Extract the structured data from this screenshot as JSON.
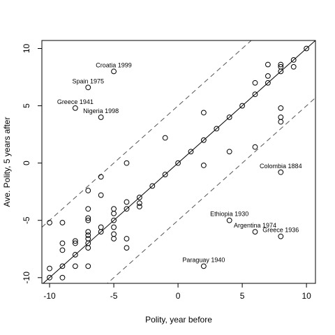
{
  "chart_data": {
    "type": "scatter",
    "title": "",
    "xlabel": "Polity, year before",
    "ylabel": "Ave. Polity, 5 years after",
    "xlim": [
      -10.6,
      10.7
    ],
    "ylim": [
      -10.5,
      10.7
    ],
    "xticks": [
      -10,
      -5,
      0,
      5,
      10
    ],
    "yticks": [
      -10,
      -5,
      0,
      5,
      10
    ],
    "grid": false,
    "legend": "none",
    "colors": {
      "points": "#000000",
      "lines": "#000000",
      "lines_dashed": "#555555",
      "background": "#ffffff"
    },
    "reference_lines": [
      {
        "slope": 1,
        "intercept": 0,
        "style": "solid"
      },
      {
        "slope": 1,
        "intercept": 5,
        "style": "dashed"
      },
      {
        "slope": 1,
        "intercept": -5,
        "style": "dashed"
      }
    ],
    "points": [
      [
        -10,
        -10
      ],
      [
        -10,
        -9.2
      ],
      [
        -10,
        -5.2
      ],
      [
        -9,
        -10
      ],
      [
        -9,
        -9
      ],
      [
        -9,
        -7.6
      ],
      [
        -9,
        -7
      ],
      [
        -9,
        -5.2
      ],
      [
        -8,
        -9
      ],
      [
        -8,
        -8
      ],
      [
        -8,
        -7
      ],
      [
        -8,
        -6.8
      ],
      [
        -7,
        -9
      ],
      [
        -7,
        -7.4
      ],
      [
        -7,
        -7
      ],
      [
        -7,
        -6.6
      ],
      [
        -7,
        -6.3
      ],
      [
        -7,
        -6
      ],
      [
        -7,
        -5
      ],
      [
        -7,
        -4.8
      ],
      [
        -7,
        -4
      ],
      [
        -7,
        -2.4
      ],
      [
        -7,
        6.6
      ],
      [
        -6,
        -6
      ],
      [
        -6,
        -5.6
      ],
      [
        -6,
        -2.8
      ],
      [
        -6,
        -1.2
      ],
      [
        -6,
        4
      ],
      [
        -5,
        -6.6
      ],
      [
        -5,
        -6.2
      ],
      [
        -5,
        -5.6
      ],
      [
        -5,
        -5
      ],
      [
        -5,
        -4.4
      ],
      [
        -5,
        -4
      ],
      [
        -5,
        8
      ],
      [
        -4,
        -7.4
      ],
      [
        -4,
        -6.6
      ],
      [
        -4,
        -4
      ],
      [
        -4,
        -3.4
      ],
      [
        -4,
        0
      ],
      [
        -3,
        -3.8
      ],
      [
        -3,
        -3.5
      ],
      [
        -3,
        -3
      ],
      [
        -2,
        -2
      ],
      [
        -1,
        -1
      ],
      [
        -1,
        2.2
      ],
      [
        0,
        0
      ],
      [
        1,
        1
      ],
      [
        2,
        -9
      ],
      [
        2,
        -0.2
      ],
      [
        2,
        2
      ],
      [
        2,
        4.4
      ],
      [
        3,
        3
      ],
      [
        4,
        -5
      ],
      [
        4,
        1
      ],
      [
        4,
        4
      ],
      [
        5,
        5
      ],
      [
        6,
        -6
      ],
      [
        6,
        1.4
      ],
      [
        6,
        6
      ],
      [
        6,
        7
      ],
      [
        7,
        7
      ],
      [
        7,
        7.6
      ],
      [
        7,
        8.6
      ],
      [
        8,
        -6.4
      ],
      [
        8,
        -0.8
      ],
      [
        8,
        3.6
      ],
      [
        8,
        4
      ],
      [
        8,
        4.8
      ],
      [
        8,
        8
      ],
      [
        8,
        8.4
      ],
      [
        8,
        8.6
      ],
      [
        9,
        8.4
      ],
      [
        9,
        9
      ],
      [
        10,
        10
      ],
      [
        -8,
        4.8
      ]
    ],
    "annotations": [
      {
        "label": "Croatia 1999",
        "x": -5,
        "y": 8
      },
      {
        "label": "Spain 1975",
        "x": -7,
        "y": 6.6
      },
      {
        "label": "Greece 1941",
        "x": -8,
        "y": 4.8
      },
      {
        "label": "Nigeria 1998",
        "x": -6,
        "y": 4
      },
      {
        "label": "Colombia 1884",
        "x": 8,
        "y": -0.8
      },
      {
        "label": "Ethiopia 1930",
        "x": 4,
        "y": -5
      },
      {
        "label": "Argentina 1974",
        "x": 6,
        "y": -6
      },
      {
        "label": "Greece 1936",
        "x": 8,
        "y": -6.4
      },
      {
        "label": "Paraguay 1940",
        "x": 2,
        "y": -9
      }
    ]
  }
}
